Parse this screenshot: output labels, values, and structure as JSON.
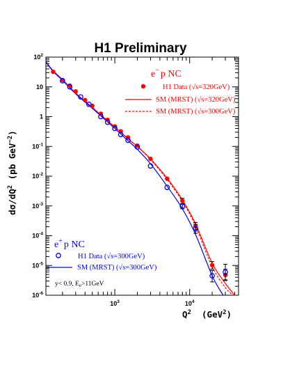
{
  "chart_data": {
    "type": "scatter",
    "title": "H1 Preliminary",
    "xlabel": "Q",
    "xlabel_exp": "2",
    "xlabel_unit": "(GeV",
    "xlabel_unit_exp": "2",
    "xlabel_unit_close": ")",
    "ylabel_parts": {
      "main": "dσ/dQ",
      "exp": "2",
      "unit": "(pb GeV",
      "unit_exp": "−2",
      "close": ")"
    },
    "xscale": "log",
    "yscale": "log",
    "xlim": [
      120,
      45000
    ],
    "ylim": [
      1e-06,
      100
    ],
    "x_ticks": [
      {
        "value": 1000,
        "base": "10",
        "exp": "3"
      },
      {
        "value": 10000,
        "base": "10",
        "exp": "4"
      }
    ],
    "y_ticks": [
      {
        "value": 100,
        "base": "10",
        "exp": "2"
      },
      {
        "value": 10,
        "label": "10"
      },
      {
        "value": 1,
        "label": "1"
      },
      {
        "value": 0.1,
        "base": "10",
        "exp": "-1"
      },
      {
        "value": 0.01,
        "base": "10",
        "exp": "-2"
      },
      {
        "value": 0.001,
        "base": "10",
        "exp": "-3"
      },
      {
        "value": 0.0001,
        "base": "10",
        "exp": "-4"
      },
      {
        "value": 1e-05,
        "base": "10",
        "exp": "-5"
      },
      {
        "value": 1e-06,
        "base": "10",
        "exp": "-6"
      }
    ],
    "legends": [
      {
        "header": "e",
        "header_sup": "−",
        "header_rest": "p NC",
        "color": "#ff0000",
        "placement": "top-right",
        "entries": [
          {
            "label": "H1 Data (√s=320GeV)",
            "marker": "filled-circle"
          },
          {
            "label": "SM (MRST) (√s=320GeV)",
            "marker": "solid-line"
          },
          {
            "label": "SM (MRST) (√s=300GeV)",
            "marker": "dashed-line"
          }
        ]
      },
      {
        "header": "e",
        "header_sup": "+",
        "header_rest": "p NC",
        "color": "#0000ff",
        "placement": "bottom-left",
        "entries": [
          {
            "label": "H1 Data (√s=300GeV)",
            "marker": "open-circle"
          },
          {
            "label": "SM (MRST) (√s=300GeV)",
            "marker": "solid-line"
          }
        ]
      }
    ],
    "cuts_text": {
      "main": "y< 0.9, E",
      "sub": "e",
      "rest": ">11GeV"
    },
    "series": [
      {
        "name": "H1 Data (√s=320GeV)",
        "style": "filled-circle",
        "color": "#ff0000",
        "points": [
          {
            "x": 150,
            "y": 32
          },
          {
            "x": 200,
            "y": 17
          },
          {
            "x": 250,
            "y": 11
          },
          {
            "x": 300,
            "y": 7
          },
          {
            "x": 400,
            "y": 3.6
          },
          {
            "x": 500,
            "y": 2.3
          },
          {
            "x": 650,
            "y": 1.25
          },
          {
            "x": 800,
            "y": 0.78
          },
          {
            "x": 1000,
            "y": 0.47
          },
          {
            "x": 1200,
            "y": 0.32
          },
          {
            "x": 1500,
            "y": 0.2
          },
          {
            "x": 2000,
            "y": 0.106
          },
          {
            "x": 3000,
            "y": 0.038
          },
          {
            "x": 5000,
            "y": 0.0082
          },
          {
            "x": 8000,
            "y": 0.00148,
            "err": [
              0.0012,
              0.0018
            ]
          },
          {
            "x": 12000,
            "y": 0.00021,
            "err": [
              0.00016,
              0.00028
            ]
          },
          {
            "x": 20000,
            "y": 1.02e-05,
            "err": [
              7.5e-06,
              1.35e-05
            ]
          },
          {
            "x": 30000,
            "y": 4.8e-06,
            "err": [
              3.1e-06,
              7.4e-06
            ]
          }
        ]
      },
      {
        "name": "H1 Data (√s=300GeV)",
        "style": "open-circle",
        "color": "#0000ff",
        "points": [
          {
            "x": 200,
            "y": 16
          },
          {
            "x": 250,
            "y": 10
          },
          {
            "x": 350,
            "y": 4.6
          },
          {
            "x": 450,
            "y": 2.6
          },
          {
            "x": 650,
            "y": 1.0
          },
          {
            "x": 800,
            "y": 0.65
          },
          {
            "x": 1000,
            "y": 0.4
          },
          {
            "x": 1200,
            "y": 0.25
          },
          {
            "x": 1500,
            "y": 0.16
          },
          {
            "x": 2000,
            "y": 0.095
          },
          {
            "x": 3000,
            "y": 0.022
          },
          {
            "x": 5000,
            "y": 0.0042
          },
          {
            "x": 8000,
            "y": 0.00097,
            "err": [
              0.0008,
              0.00115
            ]
          },
          {
            "x": 12000,
            "y": 0.00017,
            "err": [
              0.00012,
              0.00024
            ]
          },
          {
            "x": 20000,
            "y": 4.5e-06,
            "err": [
              2.8e-06,
              6.8e-06
            ]
          },
          {
            "x": 30000,
            "y": 6e-06,
            "err": [
              3.3e-06,
              1.1e-05
            ]
          }
        ]
      }
    ],
    "curves": [
      {
        "name": "SM (MRST) (√s=320GeV)",
        "style": "solid",
        "color": "#ff0000",
        "points": [
          {
            "x": 120,
            "y": 70
          },
          {
            "x": 150,
            "y": 35
          },
          {
            "x": 200,
            "y": 17.5
          },
          {
            "x": 300,
            "y": 6.2
          },
          {
            "x": 500,
            "y": 2.05
          },
          {
            "x": 800,
            "y": 0.72
          },
          {
            "x": 1000,
            "y": 0.45
          },
          {
            "x": 1500,
            "y": 0.18
          },
          {
            "x": 2000,
            "y": 0.1
          },
          {
            "x": 3000,
            "y": 0.038
          },
          {
            "x": 5000,
            "y": 0.0085
          },
          {
            "x": 8000,
            "y": 0.0016
          },
          {
            "x": 12000,
            "y": 0.00025
          },
          {
            "x": 20000,
            "y": 1.2e-05
          },
          {
            "x": 30000,
            "y": 2.5e-06
          },
          {
            "x": 40000,
            "y": 1e-06
          }
        ]
      },
      {
        "name": "SM (MRST) (√s=300GeV)",
        "style": "dashed",
        "color": "#ff0000",
        "points": [
          {
            "x": 120,
            "y": 70
          },
          {
            "x": 150,
            "y": 35
          },
          {
            "x": 200,
            "y": 17.5
          },
          {
            "x": 300,
            "y": 6.2
          },
          {
            "x": 500,
            "y": 2.05
          },
          {
            "x": 800,
            "y": 0.72
          },
          {
            "x": 1000,
            "y": 0.45
          },
          {
            "x": 1500,
            "y": 0.18
          },
          {
            "x": 2000,
            "y": 0.098
          },
          {
            "x": 3000,
            "y": 0.036
          },
          {
            "x": 5000,
            "y": 0.0078
          },
          {
            "x": 8000,
            "y": 0.0014
          },
          {
            "x": 12000,
            "y": 0.00021
          },
          {
            "x": 20000,
            "y": 9e-06
          },
          {
            "x": 30000,
            "y": 1.8e-06
          },
          {
            "x": 38000,
            "y": 1e-06
          }
        ]
      },
      {
        "name": "SM (MRST) (√s=300GeV)",
        "style": "solid",
        "color": "#0000ff",
        "points": [
          {
            "x": 120,
            "y": 68
          },
          {
            "x": 150,
            "y": 33
          },
          {
            "x": 200,
            "y": 16.5
          },
          {
            "x": 300,
            "y": 5.8
          },
          {
            "x": 500,
            "y": 1.9
          },
          {
            "x": 800,
            "y": 0.66
          },
          {
            "x": 1000,
            "y": 0.4
          },
          {
            "x": 1500,
            "y": 0.155
          },
          {
            "x": 2000,
            "y": 0.08
          },
          {
            "x": 3000,
            "y": 0.026
          },
          {
            "x": 5000,
            "y": 0.0046
          },
          {
            "x": 8000,
            "y": 0.0008
          },
          {
            "x": 12000,
            "y": 0.00011
          },
          {
            "x": 20000,
            "y": 4.5e-06
          },
          {
            "x": 28000,
            "y": 1e-06
          }
        ]
      }
    ]
  }
}
